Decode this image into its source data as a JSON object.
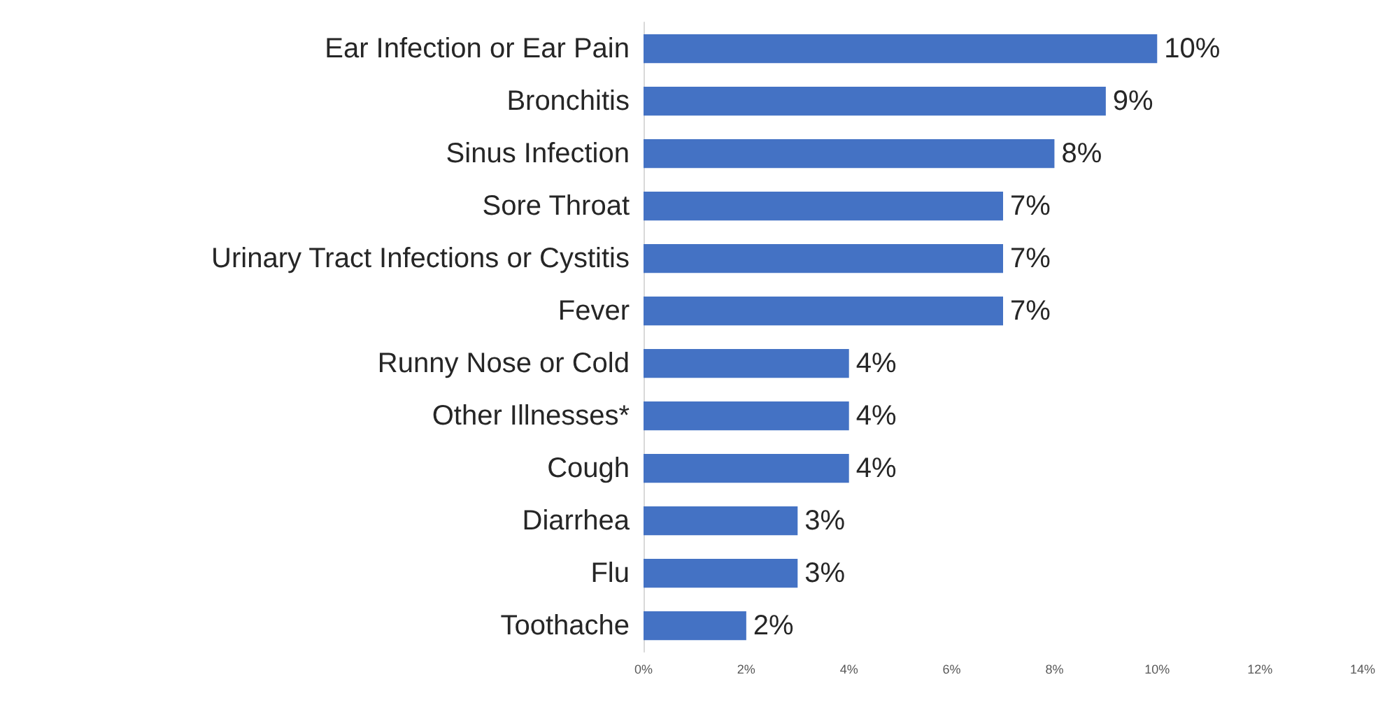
{
  "chart_data": {
    "type": "bar",
    "orientation": "horizontal",
    "categories": [
      "Ear Infection or Ear Pain",
      "Bronchitis",
      "Sinus Infection",
      "Sore Throat",
      "Urinary Tract Infections or Cystitis",
      "Fever",
      "Runny Nose or Cold",
      "Other Illnesses*",
      "Cough",
      "Diarrhea",
      "Flu",
      "Toothache"
    ],
    "values": [
      10,
      9,
      8,
      7,
      7,
      7,
      4,
      4,
      4,
      3,
      3,
      2
    ],
    "value_labels": [
      "10%",
      "9%",
      "8%",
      "7%",
      "7%",
      "7%",
      "4%",
      "4%",
      "4%",
      "3%",
      "3%",
      "2%"
    ],
    "color": "#4472c4",
    "xlim": [
      0,
      14
    ],
    "xticks": [
      {
        "value": 0,
        "label": "0%"
      },
      {
        "value": 2,
        "label": "2%"
      },
      {
        "value": 4,
        "label": "4%"
      },
      {
        "value": 6,
        "label": "6%"
      },
      {
        "value": 8,
        "label": "8%"
      },
      {
        "value": 10,
        "label": "10%"
      },
      {
        "value": 12,
        "label": "12%"
      },
      {
        "value": 14,
        "label": "14%"
      }
    ],
    "grid": false
  }
}
